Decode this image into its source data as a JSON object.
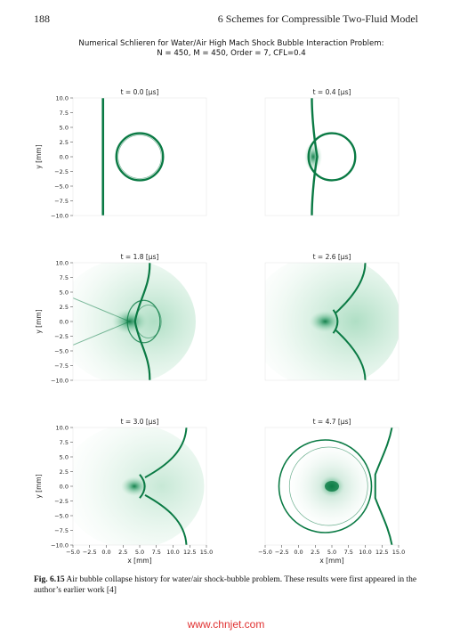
{
  "header": {
    "page_number": "188",
    "running_head": "6   Schemes for Compressible Two-Fluid Model"
  },
  "figure": {
    "title_line1": "Numerical Schlieren for Water/Air High Mach Shock Bubble Interaction Problem:",
    "title_line2": "N = 450, M = 450, Order = 7, CFL=0.4",
    "y_ticks": [
      "10.0",
      "7.5",
      "5.0",
      "2.5",
      "0.0",
      "−2.5",
      "−5.0",
      "−7.5",
      "−10.0"
    ],
    "x_ticks": [
      "−5.0",
      "−2.5",
      "0.0",
      "2.5",
      "5.0",
      "7.5",
      "10.0",
      "12.5",
      "15.0"
    ],
    "xlabel": "x [mm]",
    "ylabel": "y [mm]",
    "panels": [
      {
        "title": "t = 0.0 [μs]",
        "time_us": 0.0
      },
      {
        "title": "t = 0.4 [μs]",
        "time_us": 0.4
      },
      {
        "title": "t = 1.8 [μs]",
        "time_us": 1.8
      },
      {
        "title": "t = 2.6 [μs]",
        "time_us": 2.6
      },
      {
        "title": "t = 3.0 [μs]",
        "time_us": 3.0
      },
      {
        "title": "t = 4.7 [μs]",
        "time_us": 4.7
      }
    ],
    "color": "#0a7a44"
  },
  "caption": {
    "label": "Fig. 6.15",
    "text": "Air bubble collapse history for water/air shock-bubble problem. These results were first appeared in the author’s earlier work [4]"
  },
  "watermark": "www.chnjet.com"
}
